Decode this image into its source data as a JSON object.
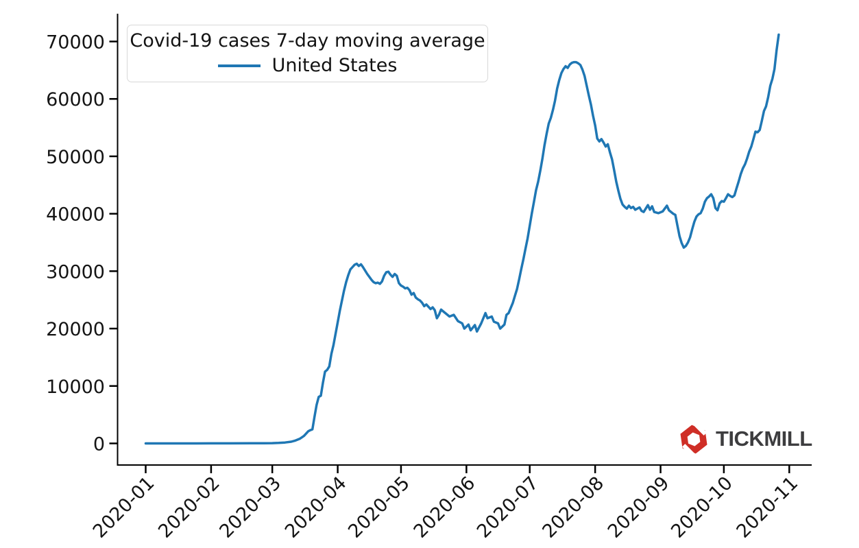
{
  "branding": {
    "logo_text": "TICKMILL",
    "logo_red": "#cf2e26",
    "logo_text_color": "#3d3d3f"
  },
  "chart_data": {
    "type": "line",
    "title": "Covid-19 cases 7-day moving average",
    "xlabel": "",
    "ylabel": "",
    "grid": false,
    "legend_position": "upper left",
    "line_color": "#1f77b4",
    "axis_color": "#000000",
    "x_tick_labels": [
      "2020-01",
      "2020-02",
      "2020-03",
      "2020-04",
      "2020-05",
      "2020-06",
      "2020-07",
      "2020-08",
      "2020-09",
      "2020-10",
      "2020-11"
    ],
    "y_ticks": [
      0,
      10000,
      20000,
      30000,
      40000,
      50000,
      60000,
      70000
    ],
    "ylim": [
      -3500,
      74500
    ],
    "series": [
      {
        "name": "United States",
        "points": [
          [
            "2020-01-01",
            0
          ],
          [
            "2020-01-10",
            0
          ],
          [
            "2020-01-20",
            0
          ],
          [
            "2020-01-25",
            5
          ],
          [
            "2020-02-01",
            10
          ],
          [
            "2020-02-10",
            15
          ],
          [
            "2020-02-20",
            20
          ],
          [
            "2020-02-26",
            30
          ],
          [
            "2020-03-01",
            45
          ],
          [
            "2020-03-04",
            80
          ],
          [
            "2020-03-07",
            150
          ],
          [
            "2020-03-10",
            300
          ],
          [
            "2020-03-12",
            500
          ],
          [
            "2020-03-14",
            800
          ],
          [
            "2020-03-16",
            1300
          ],
          [
            "2020-03-17",
            1700
          ],
          [
            "2020-03-18",
            2100
          ],
          [
            "2020-03-19",
            2300
          ],
          [
            "2020-03-20",
            2450
          ],
          [
            "2020-03-21",
            4600
          ],
          [
            "2020-03-22",
            6700
          ],
          [
            "2020-03-23",
            8100
          ],
          [
            "2020-03-24",
            8300
          ],
          [
            "2020-03-25",
            10600
          ],
          [
            "2020-03-26",
            12500
          ],
          [
            "2020-03-27",
            12800
          ],
          [
            "2020-03-28",
            13400
          ],
          [
            "2020-03-29",
            15600
          ],
          [
            "2020-03-30",
            17100
          ],
          [
            "2020-03-31",
            19100
          ],
          [
            "2020-04-01",
            21100
          ],
          [
            "2020-04-02",
            23100
          ],
          [
            "2020-04-03",
            24900
          ],
          [
            "2020-04-04",
            26600
          ],
          [
            "2020-04-05",
            28100
          ],
          [
            "2020-04-06",
            29300
          ],
          [
            "2020-04-07",
            30300
          ],
          [
            "2020-04-08",
            30700
          ],
          [
            "2020-04-09",
            31100
          ],
          [
            "2020-04-10",
            31300
          ],
          [
            "2020-04-11",
            30900
          ],
          [
            "2020-04-12",
            31200
          ],
          [
            "2020-04-13",
            30700
          ],
          [
            "2020-04-14",
            30100
          ],
          [
            "2020-04-15",
            29500
          ],
          [
            "2020-04-16",
            29000
          ],
          [
            "2020-04-17",
            28500
          ],
          [
            "2020-04-18",
            28100
          ],
          [
            "2020-04-19",
            27900
          ],
          [
            "2020-04-20",
            28000
          ],
          [
            "2020-04-21",
            27800
          ],
          [
            "2020-04-22",
            28200
          ],
          [
            "2020-04-23",
            29200
          ],
          [
            "2020-04-24",
            29800
          ],
          [
            "2020-04-25",
            29900
          ],
          [
            "2020-04-26",
            29400
          ],
          [
            "2020-04-27",
            29000
          ],
          [
            "2020-04-28",
            29500
          ],
          [
            "2020-04-29",
            29200
          ],
          [
            "2020-04-30",
            27900
          ],
          [
            "2020-05-01",
            27500
          ],
          [
            "2020-05-02",
            27300
          ],
          [
            "2020-05-03",
            27000
          ],
          [
            "2020-05-04",
            27100
          ],
          [
            "2020-05-05",
            26700
          ],
          [
            "2020-05-06",
            25900
          ],
          [
            "2020-05-07",
            26200
          ],
          [
            "2020-05-08",
            25400
          ],
          [
            "2020-05-09",
            25100
          ],
          [
            "2020-05-10",
            24900
          ],
          [
            "2020-05-11",
            24500
          ],
          [
            "2020-05-12",
            23900
          ],
          [
            "2020-05-13",
            24200
          ],
          [
            "2020-05-14",
            23800
          ],
          [
            "2020-05-15",
            23400
          ],
          [
            "2020-05-16",
            23700
          ],
          [
            "2020-05-17",
            23200
          ],
          [
            "2020-05-18",
            21800
          ],
          [
            "2020-05-19",
            22400
          ],
          [
            "2020-05-20",
            23300
          ],
          [
            "2020-05-21",
            23000
          ],
          [
            "2020-05-22",
            22700
          ],
          [
            "2020-05-24",
            22100
          ],
          [
            "2020-05-26",
            22400
          ],
          [
            "2020-05-28",
            21300
          ],
          [
            "2020-05-30",
            20900
          ],
          [
            "2020-05-31",
            20000
          ],
          [
            "2020-06-02",
            20700
          ],
          [
            "2020-06-03",
            19700
          ],
          [
            "2020-06-05",
            20600
          ],
          [
            "2020-06-06",
            19500
          ],
          [
            "2020-06-08",
            20900
          ],
          [
            "2020-06-10",
            22700
          ],
          [
            "2020-06-11",
            21800
          ],
          [
            "2020-06-13",
            22100
          ],
          [
            "2020-06-14",
            21200
          ],
          [
            "2020-06-16",
            20900
          ],
          [
            "2020-06-17",
            20000
          ],
          [
            "2020-06-19",
            20700
          ],
          [
            "2020-06-20",
            22400
          ],
          [
            "2020-06-21",
            22700
          ],
          [
            "2020-06-23",
            24500
          ],
          [
            "2020-06-24",
            25700
          ],
          [
            "2020-06-25",
            26900
          ],
          [
            "2020-06-26",
            28600
          ],
          [
            "2020-06-27",
            30400
          ],
          [
            "2020-06-28",
            32100
          ],
          [
            "2020-06-29",
            33900
          ],
          [
            "2020-06-30",
            35700
          ],
          [
            "2020-07-01",
            37900
          ],
          [
            "2020-07-02",
            40100
          ],
          [
            "2020-07-03",
            42100
          ],
          [
            "2020-07-04",
            44100
          ],
          [
            "2020-07-05",
            45600
          ],
          [
            "2020-07-06",
            47500
          ],
          [
            "2020-07-07",
            49600
          ],
          [
            "2020-07-08",
            51900
          ],
          [
            "2020-07-09",
            53900
          ],
          [
            "2020-07-10",
            55700
          ],
          [
            "2020-07-11",
            56700
          ],
          [
            "2020-07-12",
            58100
          ],
          [
            "2020-07-13",
            59700
          ],
          [
            "2020-07-14",
            61800
          ],
          [
            "2020-07-15",
            63300
          ],
          [
            "2020-07-16",
            64500
          ],
          [
            "2020-07-17",
            65200
          ],
          [
            "2020-07-18",
            65700
          ],
          [
            "2020-07-19",
            65400
          ],
          [
            "2020-07-20",
            66000
          ],
          [
            "2020-07-21",
            66300
          ],
          [
            "2020-07-22",
            66400
          ],
          [
            "2020-07-23",
            66400
          ],
          [
            "2020-07-24",
            66200
          ],
          [
            "2020-07-25",
            65900
          ],
          [
            "2020-07-26",
            65100
          ],
          [
            "2020-07-27",
            64000
          ],
          [
            "2020-07-28",
            62300
          ],
          [
            "2020-07-29",
            60600
          ],
          [
            "2020-07-30",
            59000
          ],
          [
            "2020-07-31",
            57100
          ],
          [
            "2020-08-01",
            55400
          ],
          [
            "2020-08-02",
            53100
          ],
          [
            "2020-08-03",
            52600
          ],
          [
            "2020-08-04",
            53000
          ],
          [
            "2020-08-05",
            52400
          ],
          [
            "2020-08-06",
            51700
          ],
          [
            "2020-08-07",
            52100
          ],
          [
            "2020-08-08",
            50700
          ],
          [
            "2020-08-09",
            49500
          ],
          [
            "2020-08-10",
            47600
          ],
          [
            "2020-08-11",
            45600
          ],
          [
            "2020-08-12",
            44000
          ],
          [
            "2020-08-13",
            42600
          ],
          [
            "2020-08-14",
            41600
          ],
          [
            "2020-08-15",
            41200
          ],
          [
            "2020-08-16",
            40900
          ],
          [
            "2020-08-17",
            41400
          ],
          [
            "2020-08-18",
            41000
          ],
          [
            "2020-08-19",
            41200
          ],
          [
            "2020-08-20",
            40700
          ],
          [
            "2020-08-21",
            40900
          ],
          [
            "2020-08-22",
            41100
          ],
          [
            "2020-08-23",
            40500
          ],
          [
            "2020-08-24",
            40300
          ],
          [
            "2020-08-26",
            41500
          ],
          [
            "2020-08-27",
            40700
          ],
          [
            "2020-08-28",
            41300
          ],
          [
            "2020-08-29",
            40300
          ],
          [
            "2020-08-31",
            40100
          ],
          [
            "2020-09-02",
            40400
          ],
          [
            "2020-09-04",
            41400
          ],
          [
            "2020-09-05",
            40600
          ],
          [
            "2020-09-07",
            40000
          ],
          [
            "2020-09-08",
            39800
          ],
          [
            "2020-09-09",
            37900
          ],
          [
            "2020-09-10",
            36100
          ],
          [
            "2020-09-11",
            34900
          ],
          [
            "2020-09-12",
            34100
          ],
          [
            "2020-09-13",
            34400
          ],
          [
            "2020-09-14",
            35000
          ],
          [
            "2020-09-15",
            35900
          ],
          [
            "2020-09-16",
            37300
          ],
          [
            "2020-09-17",
            38600
          ],
          [
            "2020-09-18",
            39500
          ],
          [
            "2020-09-19",
            39900
          ],
          [
            "2020-09-20",
            40100
          ],
          [
            "2020-09-21",
            40900
          ],
          [
            "2020-09-22",
            42100
          ],
          [
            "2020-09-23",
            42700
          ],
          [
            "2020-09-24",
            43000
          ],
          [
            "2020-09-25",
            43400
          ],
          [
            "2020-09-26",
            42700
          ],
          [
            "2020-09-27",
            41000
          ],
          [
            "2020-09-28",
            40600
          ],
          [
            "2020-09-29",
            41800
          ],
          [
            "2020-09-30",
            42200
          ],
          [
            "2020-10-01",
            42100
          ],
          [
            "2020-10-02",
            42700
          ],
          [
            "2020-10-03",
            43400
          ],
          [
            "2020-10-04",
            43100
          ],
          [
            "2020-10-05",
            42900
          ],
          [
            "2020-10-06",
            43200
          ],
          [
            "2020-10-07",
            44400
          ],
          [
            "2020-10-08",
            45600
          ],
          [
            "2020-10-09",
            46900
          ],
          [
            "2020-10-10",
            47900
          ],
          [
            "2020-10-11",
            48600
          ],
          [
            "2020-10-12",
            49600
          ],
          [
            "2020-10-13",
            50800
          ],
          [
            "2020-10-14",
            51700
          ],
          [
            "2020-10-15",
            53000
          ],
          [
            "2020-10-16",
            54300
          ],
          [
            "2020-10-17",
            54200
          ],
          [
            "2020-10-18",
            54600
          ],
          [
            "2020-10-19",
            56200
          ],
          [
            "2020-10-20",
            57900
          ],
          [
            "2020-10-21",
            58700
          ],
          [
            "2020-10-22",
            60300
          ],
          [
            "2020-10-23",
            62300
          ],
          [
            "2020-10-24",
            63500
          ],
          [
            "2020-10-25",
            65200
          ],
          [
            "2020-10-26",
            68500
          ],
          [
            "2020-10-27",
            71200
          ]
        ]
      }
    ]
  }
}
